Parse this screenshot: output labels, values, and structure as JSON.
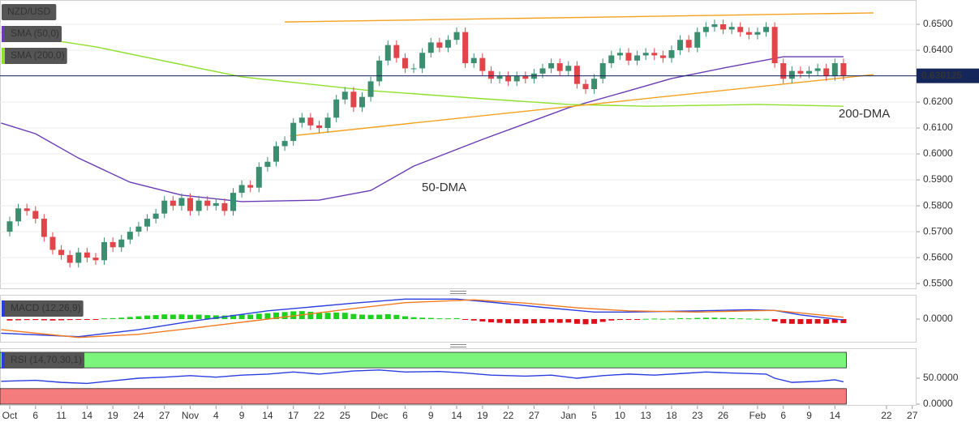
{
  "chart_data": [
    {
      "type": "candlestick",
      "title": "NZD/USD",
      "up_color": "#3b8e6f",
      "down_color": "#e0454a",
      "xlim": [
        -1.13,
        105.5
      ],
      "ylim": [
        0.54785,
        0.659375
      ],
      "yticks": [
        {
          "value": 0.65,
          "label": "0.6500"
        },
        {
          "value": 0.64,
          "label": "0.6400"
        },
        {
          "value": 0.63,
          "label": "0.6300"
        },
        {
          "value": 0.62,
          "label": "0.6200"
        },
        {
          "value": 0.61,
          "label": "0.6100"
        },
        {
          "value": 0.6,
          "label": "0.6000"
        },
        {
          "value": 0.59,
          "label": "0.5900"
        },
        {
          "value": 0.58,
          "label": "0.5800"
        },
        {
          "value": 0.57,
          "label": "0.5700"
        },
        {
          "value": 0.56,
          "label": "0.5600"
        },
        {
          "value": 0.55,
          "label": "0.5500"
        }
      ],
      "grid": true,
      "open": [
        0.57,
        0.574,
        0.579,
        0.578,
        0.575,
        0.568,
        0.563,
        0.561,
        0.558,
        0.562,
        0.56,
        0.559,
        0.566,
        0.564,
        0.567,
        0.57,
        0.572,
        0.575,
        0.577,
        0.582,
        0.58,
        0.583,
        0.578,
        0.582,
        0.58,
        0.581,
        0.578,
        0.585,
        0.588,
        0.587,
        0.595,
        0.597,
        0.603,
        0.605,
        0.612,
        0.614,
        0.611,
        0.61,
        0.614,
        0.621,
        0.624,
        0.618,
        0.622,
        0.628,
        0.636,
        0.642,
        0.637,
        0.633,
        0.633,
        0.639,
        0.643,
        0.641,
        0.644,
        0.647,
        0.635,
        0.637,
        0.632,
        0.629,
        0.63,
        0.628,
        0.63,
        0.629,
        0.631,
        0.633,
        0.635,
        0.632,
        0.634,
        0.627,
        0.625,
        0.629,
        0.635,
        0.638,
        0.639,
        0.636,
        0.638,
        0.639,
        0.638,
        0.637,
        0.64,
        0.644,
        0.641,
        0.647,
        0.649,
        0.65,
        0.648,
        0.649,
        0.647,
        0.646,
        0.647,
        0.649,
        0.635,
        0.629,
        0.632,
        0.631,
        0.632,
        0.633,
        0.63,
        0.635
      ],
      "high": [
        0.5758,
        0.5808,
        0.5808,
        0.5798,
        0.5768,
        0.5698,
        0.5648,
        0.5628,
        0.5638,
        0.5638,
        0.5618,
        0.5678,
        0.5678,
        0.5688,
        0.5718,
        0.5738,
        0.5768,
        0.5788,
        0.5838,
        0.5838,
        0.5848,
        0.5848,
        0.5838,
        0.5838,
        0.5828,
        0.5828,
        0.5868,
        0.5898,
        0.5898,
        0.5968,
        0.5988,
        0.6048,
        0.6068,
        0.6138,
        0.6158,
        0.6158,
        0.6128,
        0.6158,
        0.6228,
        0.6258,
        0.6258,
        0.6238,
        0.6298,
        0.6378,
        0.6438,
        0.6438,
        0.6388,
        0.6348,
        0.6408,
        0.6448,
        0.6448,
        0.6458,
        0.6488,
        0.6488,
        0.6388,
        0.6388,
        0.6338,
        0.6318,
        0.6318,
        0.6318,
        0.6318,
        0.6328,
        0.6348,
        0.6368,
        0.6368,
        0.6358,
        0.6358,
        0.6288,
        0.6308,
        0.6368,
        0.6398,
        0.6408,
        0.6408,
        0.6398,
        0.6408,
        0.6408,
        0.6398,
        0.6418,
        0.6458,
        0.6458,
        0.6488,
        0.6508,
        0.6518,
        0.6518,
        0.6508,
        0.6508,
        0.6488,
        0.6488,
        0.6508,
        0.6508,
        0.6368,
        0.6338,
        0.6338,
        0.6338,
        0.6348,
        0.6348,
        0.6368,
        0.6368
      ],
      "low": [
        0.5682,
        0.5722,
        0.5762,
        0.5732,
        0.5662,
        0.5612,
        0.5592,
        0.5562,
        0.5562,
        0.5582,
        0.5572,
        0.5572,
        0.5622,
        0.5622,
        0.5652,
        0.5682,
        0.5702,
        0.5732,
        0.5752,
        0.5782,
        0.5782,
        0.5762,
        0.5762,
        0.5782,
        0.5782,
        0.5762,
        0.5762,
        0.5832,
        0.5852,
        0.5852,
        0.5932,
        0.5952,
        0.6012,
        0.6032,
        0.6102,
        0.6092,
        0.6082,
        0.6082,
        0.6122,
        0.6192,
        0.6162,
        0.6162,
        0.6202,
        0.6262,
        0.6342,
        0.6352,
        0.6312,
        0.6312,
        0.6312,
        0.6372,
        0.6392,
        0.6392,
        0.6422,
        0.6332,
        0.6332,
        0.6302,
        0.6272,
        0.6272,
        0.6262,
        0.6262,
        0.6272,
        0.6272,
        0.6292,
        0.6312,
        0.6302,
        0.6302,
        0.6252,
        0.6232,
        0.6232,
        0.6272,
        0.6332,
        0.6362,
        0.6342,
        0.6342,
        0.6362,
        0.6362,
        0.6352,
        0.6352,
        0.6382,
        0.6392,
        0.6392,
        0.6452,
        0.6472,
        0.6462,
        0.6462,
        0.6452,
        0.6442,
        0.6442,
        0.6452,
        0.6332,
        0.6272,
        0.6272,
        0.6292,
        0.6292,
        0.6302,
        0.6282,
        0.6282,
        0.6283
      ],
      "close": [
        0.574,
        0.579,
        0.578,
        0.575,
        0.568,
        0.563,
        0.561,
        0.558,
        0.562,
        0.56,
        0.559,
        0.566,
        0.564,
        0.567,
        0.57,
        0.572,
        0.575,
        0.577,
        0.582,
        0.58,
        0.583,
        0.578,
        0.582,
        0.58,
        0.581,
        0.578,
        0.585,
        0.588,
        0.587,
        0.595,
        0.597,
        0.603,
        0.605,
        0.612,
        0.614,
        0.611,
        0.61,
        0.614,
        0.621,
        0.624,
        0.618,
        0.622,
        0.628,
        0.636,
        0.642,
        0.637,
        0.633,
        0.633,
        0.639,
        0.643,
        0.641,
        0.644,
        0.647,
        0.635,
        0.637,
        0.632,
        0.629,
        0.63,
        0.628,
        0.63,
        0.629,
        0.631,
        0.633,
        0.635,
        0.632,
        0.634,
        0.627,
        0.625,
        0.629,
        0.635,
        0.638,
        0.639,
        0.636,
        0.638,
        0.639,
        0.638,
        0.637,
        0.64,
        0.644,
        0.641,
        0.647,
        0.649,
        0.65,
        0.648,
        0.649,
        0.647,
        0.646,
        0.647,
        0.649,
        0.635,
        0.629,
        0.632,
        0.631,
        0.632,
        0.633,
        0.63,
        0.635,
        0.6301
      ],
      "series": [
        {
          "name": "SMA (50,0)",
          "label": "50-DMA",
          "color": "#6a3bb5",
          "x": [
            -1,
            3,
            8,
            14,
            20,
            27,
            36,
            42,
            47,
            55,
            65,
            71,
            77,
            83,
            87,
            90,
            97
          ],
          "values": [
            0.6119,
            0.6078,
            0.5984,
            0.5891,
            0.5841,
            0.5816,
            0.5822,
            0.5859,
            0.5953,
            0.6056,
            0.6178,
            0.6234,
            0.6291,
            0.6331,
            0.6356,
            0.6375,
            0.6375
          ]
        },
        {
          "name": "SMA (200,0)",
          "label": "200-DMA",
          "color": "#8fe02c",
          "x": [
            -1,
            10,
            27,
            42,
            55,
            65,
            74,
            87,
            97
          ],
          "values": [
            0.6469,
            0.6413,
            0.6297,
            0.6244,
            0.6213,
            0.6191,
            0.6184,
            0.6191,
            0.6184
          ]
        }
      ],
      "trendlines": [
        {
          "color": "#f5a11f",
          "x": [
            32,
            100.5
          ],
          "values": [
            0.6509,
            0.6544
          ]
        },
        {
          "color": "#f5a11f",
          "x": [
            32.6,
            100.5
          ],
          "values": [
            0.6069,
            0.6306
          ]
        }
      ],
      "last_price": 0.630125,
      "last_price_color": "#15275a"
    },
    {
      "type": "macd",
      "title": "MACD (12,26,9)",
      "xlim": [
        -1.13,
        105.5
      ],
      "ylim": [
        -0.01,
        0.01
      ],
      "yticks": [
        {
          "value": 0,
          "label": "0.0000"
        }
      ],
      "histogram": {
        "up_color": "#1fd11f",
        "down_color": "#e0101a",
        "values": [
          -0.0006,
          -0.0005,
          -0.0004,
          -0.0004,
          -0.0005,
          -0.0006,
          -0.0005,
          -0.0004,
          -0.0003,
          -0.0002,
          -0.0001,
          0.0003,
          0.0004,
          0.0006,
          0.0009,
          0.0012,
          0.0015,
          0.0017,
          0.002,
          0.0019,
          0.002,
          0.0018,
          0.0019,
          0.0017,
          0.0016,
          0.0015,
          0.0018,
          0.002,
          0.0019,
          0.0023,
          0.0025,
          0.0028,
          0.003,
          0.0033,
          0.0034,
          0.0031,
          0.0028,
          0.0027,
          0.0028,
          0.0027,
          0.0022,
          0.0019,
          0.0018,
          0.0019,
          0.0021,
          0.0018,
          0.0012,
          0.0008,
          0.0006,
          0.0005,
          0.0003,
          0.0003,
          0.0004,
          -0.0002,
          -0.0006,
          -0.001,
          -0.0014,
          -0.0016,
          -0.0018,
          -0.0018,
          -0.0019,
          -0.0018,
          -0.0017,
          -0.0015,
          -0.0016,
          -0.0015,
          -0.002,
          -0.0022,
          -0.002,
          -0.0012,
          -0.0006,
          -0.0003,
          -0.0002,
          -0.0001,
          0.0001,
          0.0002,
          0.0001,
          0.0002,
          0.0004,
          0.0003,
          0.0005,
          0.0006,
          0.0006,
          0.0005,
          0.0004,
          0.0003,
          0.0002,
          0.0001,
          0.0001,
          -0.001,
          -0.0018,
          -0.002,
          -0.0021,
          -0.002,
          -0.0019,
          -0.002,
          -0.0016,
          -0.0017
        ]
      },
      "series": [
        {
          "color": "#2a3ee0",
          "x": [
            -1,
            8,
            15,
            21,
            30,
            40,
            46,
            52,
            56,
            62,
            68,
            72,
            80,
            86,
            89,
            92,
            97
          ],
          "values": [
            -0.006,
            -0.0075,
            -0.0045,
            -0.001,
            0.0035,
            0.0068,
            0.0085,
            0.0085,
            0.0072,
            0.005,
            0.003,
            0.003,
            0.0035,
            0.004,
            0.0037,
            0.0018,
            -0.0004
          ]
        },
        {
          "color": "#f27a21",
          "x": [
            -1,
            8,
            15,
            21,
            30,
            40,
            46,
            54,
            60,
            66,
            72,
            80,
            86,
            89,
            97
          ],
          "values": [
            -0.0045,
            -0.0078,
            -0.0065,
            -0.004,
            0.0,
            0.0045,
            0.007,
            0.0082,
            0.0068,
            0.0048,
            0.0035,
            0.003,
            0.0035,
            0.0037,
            0.0008
          ]
        }
      ]
    },
    {
      "type": "rsi",
      "title": "RSI (14,70,30,1)",
      "xlim": [
        -1.13,
        105.5
      ],
      "ylim": [
        -3.1,
        106.25
      ],
      "yticks": [
        {
          "value": 50,
          "label": "50.0000"
        },
        {
          "value": 0,
          "label": "0.0000"
        }
      ],
      "bands": [
        {
          "from": 70,
          "to": 100,
          "color": "#7cf57c"
        },
        {
          "from": 0,
          "to": 30,
          "color": "#f57c7c"
        }
      ],
      "band_end": 97,
      "series": [
        {
          "color": "#2a3ee0",
          "x": [
            -1,
            3,
            6,
            9,
            12,
            15,
            18,
            21,
            24,
            27,
            30,
            33,
            36,
            40,
            43,
            46,
            50,
            53,
            56,
            60,
            63,
            66,
            69,
            72,
            75,
            78,
            81,
            84,
            88,
            89,
            91,
            94,
            96,
            97
          ],
          "values": [
            44,
            46,
            42,
            40,
            45,
            50,
            52,
            55,
            52,
            56,
            58,
            62,
            58,
            64,
            66,
            62,
            63,
            60,
            56,
            54,
            56,
            50,
            55,
            58,
            56,
            59,
            62,
            60,
            58,
            50,
            42,
            44,
            47,
            43
          ]
        }
      ],
      "xticks": [
        {
          "value": 0,
          "label": "Oct"
        },
        {
          "value": 3,
          "label": "6"
        },
        {
          "value": 6,
          "label": "11"
        },
        {
          "value": 9,
          "label": "14"
        },
        {
          "value": 12,
          "label": "19"
        },
        {
          "value": 15,
          "label": "24"
        },
        {
          "value": 18,
          "label": "27"
        },
        {
          "value": 21,
          "label": "Nov"
        },
        {
          "value": 24,
          "label": "4"
        },
        {
          "value": 27,
          "label": "9"
        },
        {
          "value": 30,
          "label": "14"
        },
        {
          "value": 33,
          "label": "17"
        },
        {
          "value": 36,
          "label": "22"
        },
        {
          "value": 39,
          "label": "25"
        },
        {
          "value": 43,
          "label": "Dec"
        },
        {
          "value": 46,
          "label": "6"
        },
        {
          "value": 49,
          "label": "9"
        },
        {
          "value": 52,
          "label": "14"
        },
        {
          "value": 55,
          "label": "19"
        },
        {
          "value": 58,
          "label": "22"
        },
        {
          "value": 61,
          "label": "27"
        },
        {
          "value": 65,
          "label": "Jan"
        },
        {
          "value": 68,
          "label": "5"
        },
        {
          "value": 71,
          "label": "10"
        },
        {
          "value": 74,
          "label": "13"
        },
        {
          "value": 77,
          "label": "18"
        },
        {
          "value": 80,
          "label": "23"
        },
        {
          "value": 83,
          "label": "26"
        },
        {
          "value": 87,
          "label": "Feb"
        },
        {
          "value": 90,
          "label": "6"
        },
        {
          "value": 93,
          "label": "9"
        },
        {
          "value": 96,
          "label": "14"
        },
        {
          "value": 102,
          "label": "22"
        },
        {
          "value": 105,
          "label": "27"
        }
      ]
    }
  ]
}
